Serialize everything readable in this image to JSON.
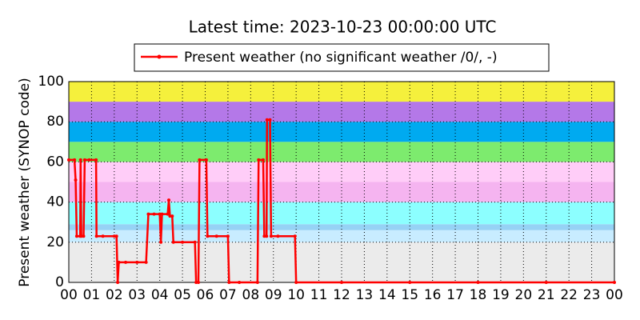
{
  "chart_data": {
    "type": "line",
    "title": "Latest time: 2023-10-23 00:00:00 UTC",
    "y_label": "Present weather (SYNOP code)",
    "x": [
      0,
      0.25,
      0.3,
      0.35,
      0.5,
      0.52,
      0.55,
      0.65,
      0.7,
      0.9,
      1.2,
      1.22,
      1.5,
      2.0,
      2.1,
      2.15,
      2.2,
      2.5,
      3.0,
      3.4,
      3.5,
      3.75,
      4.0,
      4.05,
      4.1,
      4.35,
      4.4,
      4.45,
      4.55,
      4.6,
      5.0,
      5.55,
      5.6,
      5.7,
      5.75,
      6.05,
      6.1,
      6.5,
      7.0,
      7.05,
      7.5,
      8.3,
      8.35,
      8.55,
      8.6,
      8.7,
      8.72,
      8.85,
      8.9,
      9.2,
      9.95,
      10.0,
      12,
      15,
      18,
      21,
      24
    ],
    "series": [
      {
        "name": "Present weather (no significant weather /0/, -)",
        "color": "#ff0000",
        "values": [
          61,
          61,
          51,
          23,
          23,
          61,
          23,
          23,
          61,
          61,
          61,
          23,
          23,
          23,
          23,
          0,
          10,
          10,
          10,
          10,
          34,
          34,
          34,
          20,
          34,
          34,
          41,
          33,
          33,
          20,
          20,
          20,
          0,
          0,
          61,
          61,
          23,
          23,
          23,
          0,
          0,
          0,
          61,
          61,
          23,
          23,
          81,
          81,
          23,
          23,
          23,
          0,
          0,
          0,
          0,
          0,
          0
        ]
      }
    ],
    "xlim": [
      0,
      24
    ],
    "xticks": [
      {
        "value": 0,
        "label": "00"
      },
      {
        "value": 1,
        "label": "01"
      },
      {
        "value": 2,
        "label": "02"
      },
      {
        "value": 3,
        "label": "03"
      },
      {
        "value": 4,
        "label": "04"
      },
      {
        "value": 5,
        "label": "05"
      },
      {
        "value": 6,
        "label": "06"
      },
      {
        "value": 7,
        "label": "07"
      },
      {
        "value": 8,
        "label": "08"
      },
      {
        "value": 9,
        "label": "09"
      },
      {
        "value": 10,
        "label": "10"
      },
      {
        "value": 11,
        "label": "11"
      },
      {
        "value": 12,
        "label": "12"
      },
      {
        "value": 13,
        "label": "13"
      },
      {
        "value": 14,
        "label": "14"
      },
      {
        "value": 15,
        "label": "15"
      },
      {
        "value": 16,
        "label": "16"
      },
      {
        "value": 17,
        "label": "17"
      },
      {
        "value": 18,
        "label": "18"
      },
      {
        "value": 19,
        "label": "19"
      },
      {
        "value": 20,
        "label": "20"
      },
      {
        "value": 21,
        "label": "21"
      },
      {
        "value": 22,
        "label": "22"
      },
      {
        "value": 23,
        "label": "23"
      },
      {
        "value": 24,
        "label": "00"
      }
    ],
    "ylim": [
      0,
      100
    ],
    "yticks": [
      0,
      20,
      40,
      60,
      80,
      100
    ],
    "grid": true,
    "legend": "top",
    "bands": [
      {
        "from": 0,
        "to": 20,
        "color": "#ebebeb"
      },
      {
        "from": 20,
        "to": 26,
        "color": "#c8ecff"
      },
      {
        "from": 26,
        "to": 29,
        "color": "#96d2f5"
      },
      {
        "from": 29,
        "to": 40,
        "color": "#8cffff"
      },
      {
        "from": 40,
        "to": 50,
        "color": "#f5b4f0"
      },
      {
        "from": 50,
        "to": 60,
        "color": "#ffcdf8"
      },
      {
        "from": 60,
        "to": 70,
        "color": "#7deb6e"
      },
      {
        "from": 70,
        "to": 80,
        "color": "#00aaf0"
      },
      {
        "from": 80,
        "to": 90,
        "color": "#b478e8"
      },
      {
        "from": 90,
        "to": 100,
        "color": "#f5f03c"
      }
    ]
  }
}
